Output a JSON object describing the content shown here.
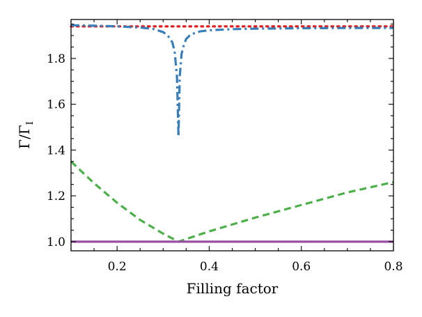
{
  "chart_data": {
    "type": "line",
    "title": "",
    "xlabel": "Filling factor",
    "ylabel": "Γ/Γ",
    "ylabel_subscript": "I",
    "xlim": [
      0.1,
      0.8
    ],
    "ylim": [
      0.96,
      1.97
    ],
    "xticks": [
      0.2,
      0.4,
      0.6,
      0.8
    ],
    "xtick_labels": [
      "0.2",
      "0.4",
      "0.6",
      "0.8"
    ],
    "yticks": [
      1.0,
      1.2,
      1.4,
      1.6,
      1.8
    ],
    "ytick_labels": [
      "1.0",
      "1.2",
      "1.4",
      "1.6",
      "1.8"
    ],
    "grid": false,
    "series": [
      {
        "name": "dotted",
        "style": "dotted",
        "color": "#e41a1c",
        "x": [
          0.1,
          0.8
        ],
        "y": [
          1.94,
          1.94
        ]
      },
      {
        "name": "dash-dot",
        "style": "dashdot",
        "color": "#377eb8",
        "x": [
          0.1,
          0.15,
          0.2,
          0.25,
          0.28,
          0.3,
          0.31,
          0.32,
          0.325,
          0.33,
          0.3333,
          0.336,
          0.34,
          0.345,
          0.35,
          0.36,
          0.38,
          0.4,
          0.45,
          0.5,
          0.6,
          0.7,
          0.8
        ],
        "y": [
          1.945,
          1.943,
          1.94,
          1.935,
          1.928,
          1.915,
          1.9,
          1.87,
          1.83,
          1.72,
          1.46,
          1.72,
          1.82,
          1.86,
          1.885,
          1.905,
          1.918,
          1.923,
          1.928,
          1.93,
          1.932,
          1.933,
          1.933
        ]
      },
      {
        "name": "dashed",
        "style": "dashed",
        "color": "#4daf4a",
        "x": [
          0.1,
          0.15,
          0.2,
          0.25,
          0.3,
          0.3333,
          0.4,
          0.5,
          0.6,
          0.7,
          0.8
        ],
        "y": [
          1.35,
          1.255,
          1.17,
          1.095,
          1.035,
          1.0,
          1.045,
          1.105,
          1.16,
          1.215,
          1.26
        ]
      },
      {
        "name": "solid",
        "style": "solid",
        "color": "#984ea3",
        "x": [
          0.1,
          0.8
        ],
        "y": [
          1.0,
          1.0
        ]
      }
    ]
  }
}
